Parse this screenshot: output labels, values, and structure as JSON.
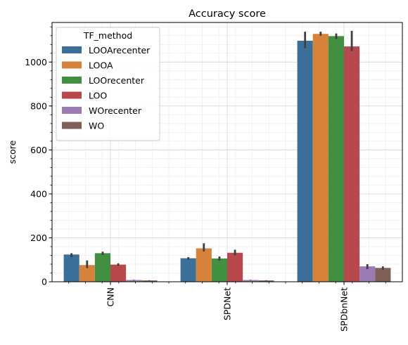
{
  "chart_data": {
    "type": "bar",
    "title": "Accuracy score",
    "xlabel": "",
    "ylabel": "score",
    "ylim": [
      0,
      1180
    ],
    "yticks": [
      0,
      200,
      400,
      600,
      800,
      1000
    ],
    "categories": [
      "CNN",
      "SPDNet",
      "SPDbnNet"
    ],
    "legend": {
      "title": "TF_method",
      "placement": "upper-left"
    },
    "grid": true,
    "series": [
      {
        "name": "LOOArecenter",
        "color": "#3a6f99",
        "values": [
          124,
          107,
          1097
        ],
        "err": [
          [
            112,
            130
          ],
          [
            100,
            112
          ],
          [
            1063,
            1138
          ]
        ]
      },
      {
        "name": "LOOA",
        "color": "#d6823a",
        "values": [
          76,
          152,
          1128
        ],
        "err": [
          [
            62,
            97
          ],
          [
            138,
            175
          ],
          [
            1120,
            1138
          ]
        ]
      },
      {
        "name": "LOOrecenter",
        "color": "#409040",
        "values": [
          130,
          106,
          1118
        ],
        "err": [
          [
            122,
            137
          ],
          [
            96,
            115
          ],
          [
            1105,
            1130
          ]
        ]
      },
      {
        "name": "LOO",
        "color": "#b9484c",
        "values": [
          78,
          132,
          1071
        ],
        "err": [
          [
            72,
            84
          ],
          [
            120,
            146
          ],
          [
            1050,
            1142
          ]
        ]
      },
      {
        "name": "WOrecenter",
        "color": "#9a7bb4",
        "values": [
          8,
          8,
          70
        ],
        "err": [
          [
            7,
            9
          ],
          [
            7,
            9
          ],
          [
            58,
            80
          ]
        ]
      },
      {
        "name": "WO",
        "color": "#7f5f56",
        "values": [
          6,
          6,
          63
        ],
        "err": [
          [
            5,
            7
          ],
          [
            5,
            7
          ],
          [
            55,
            70
          ]
        ]
      }
    ]
  }
}
